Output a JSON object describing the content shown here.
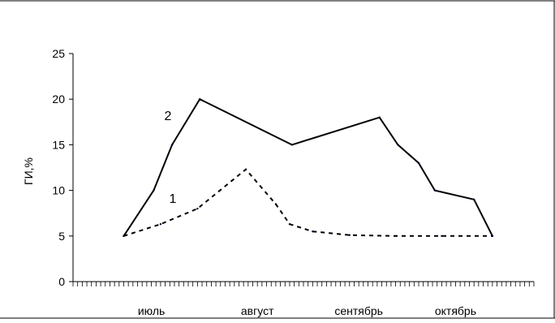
{
  "chart_data": {
    "type": "line",
    "ylabel": "ГИ,%",
    "xlabel": "",
    "ylim": [
      0,
      25
    ],
    "yticks": [
      0,
      5,
      10,
      15,
      20,
      25
    ],
    "months": [
      "июль",
      "август",
      "сентябрь",
      "октябрь"
    ],
    "xlim": [
      0,
      100
    ],
    "month_label_x": [
      17,
      40,
      62,
      83
    ],
    "minor_tick_count": 100,
    "grid": false,
    "legend": "none",
    "series": [
      {
        "name": "2",
        "style": "solid",
        "color": "#000000",
        "points": [
          [
            11,
            5
          ],
          [
            17.5,
            10
          ],
          [
            21.5,
            15
          ],
          [
            27.5,
            20
          ],
          [
            47.5,
            15
          ],
          [
            66.5,
            18
          ],
          [
            70.5,
            15
          ],
          [
            75,
            13
          ],
          [
            78.5,
            10
          ],
          [
            87,
            9
          ],
          [
            91,
            5
          ]
        ]
      },
      {
        "name": "1",
        "style": "dashed",
        "color": "#000000",
        "points": [
          [
            11,
            5
          ],
          [
            19,
            6.3
          ],
          [
            27,
            8
          ],
          [
            37.5,
            12.3
          ],
          [
            44,
            8.5
          ],
          [
            47,
            6.3
          ],
          [
            52,
            5.5
          ],
          [
            60,
            5.1
          ],
          [
            70,
            5.0
          ],
          [
            80,
            5.0
          ],
          [
            91,
            5.0
          ]
        ]
      }
    ]
  }
}
